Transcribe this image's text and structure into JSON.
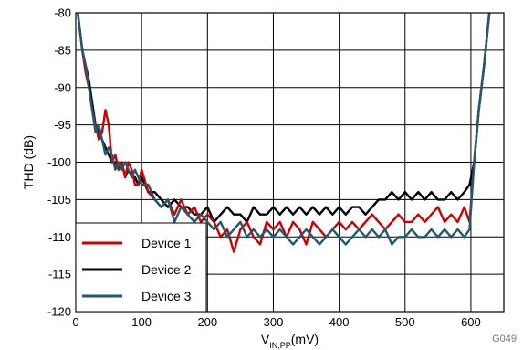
{
  "chart_data": {
    "type": "line",
    "xlabel_main": "V",
    "xlabel_sub": "IN,PP",
    "xlabel_unit": "(mV)",
    "ylabel": "THD (dB)",
    "xlim": [
      0,
      650
    ],
    "ylim": [
      -120,
      -80
    ],
    "x_ticks": [
      0,
      100,
      200,
      300,
      400,
      500,
      600
    ],
    "y_ticks": [
      -80,
      -85,
      -90,
      -95,
      -100,
      -105,
      -110,
      -115,
      -120
    ],
    "grid": true,
    "legend_position": "bottom-left",
    "figure_id": "G049",
    "series": [
      {
        "name": "Device 1",
        "color": "#cc0000",
        "x": [
          3,
          10,
          15,
          20,
          25,
          30,
          35,
          40,
          45,
          50,
          55,
          60,
          65,
          70,
          75,
          80,
          85,
          90,
          95,
          100,
          110,
          120,
          130,
          140,
          150,
          160,
          170,
          180,
          190,
          200,
          210,
          220,
          230,
          240,
          250,
          260,
          270,
          280,
          290,
          300,
          310,
          320,
          330,
          340,
          350,
          360,
          370,
          380,
          390,
          400,
          410,
          420,
          430,
          440,
          450,
          460,
          470,
          480,
          490,
          500,
          510,
          520,
          530,
          540,
          550,
          560,
          570,
          580,
          590,
          598,
          605,
          612,
          620,
          628
        ],
        "y": [
          -80,
          -85,
          -88,
          -90,
          -93,
          -95,
          -97,
          -96,
          -93,
          -95,
          -100,
          -99,
          -101,
          -100,
          -102,
          -100,
          -101,
          -103,
          -103,
          -101,
          -104,
          -105,
          -106,
          -105,
          -107,
          -105,
          -107,
          -106,
          -108,
          -107,
          -108,
          -110,
          -109,
          -112,
          -109,
          -108,
          -110,
          -111,
          -108,
          -109,
          -108,
          -110,
          -108,
          -109,
          -111,
          -108,
          -109,
          -110,
          -109,
          -108,
          -109,
          -108,
          -109,
          -108,
          -107,
          -108,
          -109,
          -108,
          -107,
          -108,
          -108,
          -107,
          -108,
          -107,
          -106,
          -108,
          -107,
          -108,
          -106,
          -108,
          -100,
          -93,
          -87,
          -80
        ]
      },
      {
        "name": "Device 2",
        "color": "#000000",
        "x": [
          3,
          10,
          15,
          20,
          25,
          30,
          35,
          40,
          45,
          50,
          55,
          60,
          65,
          70,
          75,
          80,
          85,
          90,
          95,
          100,
          110,
          120,
          130,
          140,
          150,
          160,
          170,
          180,
          190,
          200,
          210,
          220,
          230,
          240,
          250,
          260,
          270,
          280,
          290,
          300,
          310,
          320,
          330,
          340,
          350,
          360,
          370,
          380,
          390,
          400,
          410,
          420,
          430,
          440,
          450,
          460,
          470,
          480,
          490,
          500,
          510,
          520,
          530,
          540,
          550,
          560,
          570,
          580,
          590,
          598,
          605,
          612,
          620,
          628
        ],
        "y": [
          -80,
          -85,
          -87,
          -89,
          -92,
          -95,
          -96,
          -97,
          -98,
          -99,
          -100,
          -100,
          -101,
          -100,
          -102,
          -101,
          -102,
          -102,
          -103,
          -102,
          -104,
          -104,
          -105,
          -106,
          -105,
          -106,
          -106,
          -107,
          -107,
          -106,
          -108,
          -107,
          -106,
          -107,
          -107,
          -108,
          -106,
          -107,
          -107,
          -106,
          -107,
          -106,
          -107,
          -106,
          -107,
          -106,
          -107,
          -106,
          -107,
          -106,
          -107,
          -106,
          -106,
          -107,
          -106,
          -105,
          -105,
          -104,
          -105,
          -104,
          -105,
          -104,
          -105,
          -104,
          -105,
          -105,
          -104,
          -105,
          -104,
          -103,
          -100,
          -93,
          -87,
          -80
        ]
      },
      {
        "name": "Device 3",
        "color": "#1f5a6e",
        "x": [
          3,
          10,
          15,
          20,
          25,
          30,
          35,
          40,
          45,
          50,
          55,
          60,
          65,
          70,
          75,
          80,
          85,
          90,
          95,
          100,
          110,
          120,
          130,
          140,
          150,
          160,
          170,
          180,
          190,
          200,
          210,
          220,
          230,
          240,
          250,
          260,
          270,
          280,
          290,
          300,
          310,
          320,
          330,
          340,
          350,
          360,
          370,
          380,
          390,
          400,
          410,
          420,
          430,
          440,
          450,
          460,
          470,
          480,
          490,
          500,
          510,
          520,
          530,
          540,
          550,
          560,
          570,
          580,
          590,
          598,
          605,
          612,
          620,
          628
        ],
        "y": [
          -80,
          -85,
          -87,
          -90,
          -93,
          -96,
          -95,
          -97,
          -99,
          -98,
          -99,
          -101,
          -100,
          -101,
          -100,
          -101,
          -102,
          -101,
          -102,
          -103,
          -103,
          -105,
          -106,
          -105,
          -108,
          -106,
          -107,
          -108,
          -107,
          -108,
          -109,
          -108,
          -110,
          -109,
          -108,
          -110,
          -109,
          -110,
          -109,
          -110,
          -109,
          -110,
          -111,
          -110,
          -109,
          -110,
          -111,
          -110,
          -109,
          -110,
          -111,
          -110,
          -109,
          -110,
          -109,
          -110,
          -109,
          -111,
          -110,
          -110,
          -109,
          -110,
          -110,
          -109,
          -110,
          -109,
          -110,
          -109,
          -110,
          -109,
          -100,
          -93,
          -87,
          -80
        ]
      }
    ]
  }
}
